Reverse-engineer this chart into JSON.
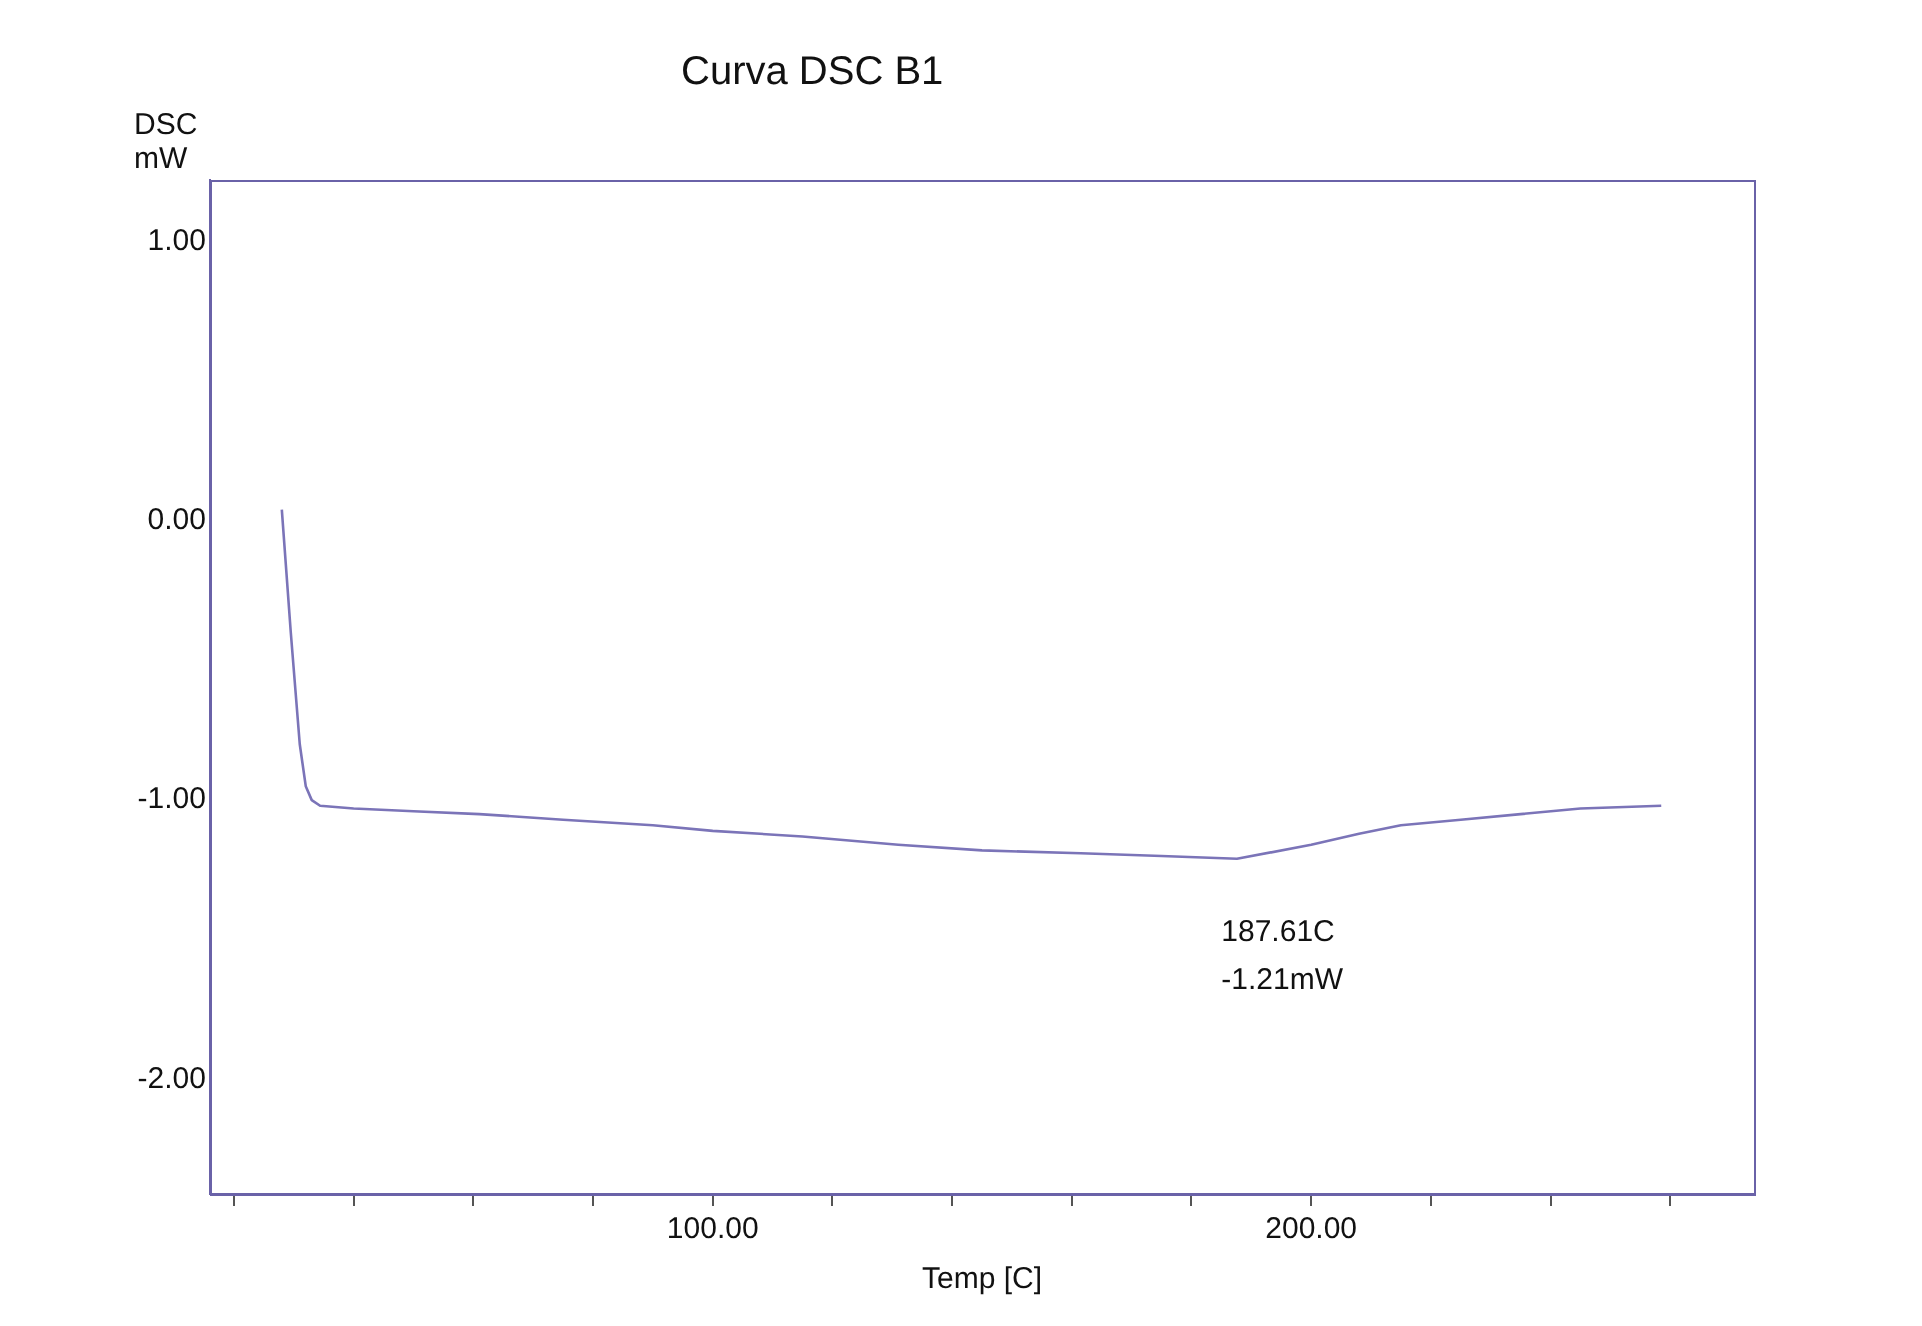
{
  "chart_data": {
    "type": "line",
    "title": "Curva DSC B1",
    "xlabel": "Temp [C]",
    "ylabel": "DSC\nmW",
    "x": [
      28,
      29.5,
      31,
      32,
      33,
      34.4,
      40,
      50,
      61,
      75,
      90,
      100,
      115,
      131,
      145,
      161.5,
      175,
      187.6,
      200,
      208,
      215,
      225,
      235,
      245,
      258.5
    ],
    "series": [
      {
        "color": "#7b74b8",
        "values": [
          0.04,
          -0.4,
          -0.8,
          -0.95,
          -1.0,
          -1.02,
          -1.03,
          -1.04,
          -1.05,
          -1.07,
          -1.09,
          -1.11,
          -1.13,
          -1.16,
          -1.18,
          -1.19,
          -1.2,
          -1.21,
          -1.16,
          -1.12,
          -1.09,
          -1.07,
          -1.05,
          -1.03,
          -1.02
        ]
      }
    ],
    "xlim": [
      16,
      274
    ],
    "ylim": [
      -2.41,
      1.22
    ],
    "xticks": [
      {
        "value": 20,
        "label": null
      },
      {
        "value": 40,
        "label": null
      },
      {
        "value": 60,
        "label": null
      },
      {
        "value": 80,
        "label": null
      },
      {
        "value": 100,
        "label": "100.00"
      },
      {
        "value": 120,
        "label": null
      },
      {
        "value": 140,
        "label": null
      },
      {
        "value": 160,
        "label": null
      },
      {
        "value": 180,
        "label": null
      },
      {
        "value": 200,
        "label": "200.00"
      },
      {
        "value": 220,
        "label": null
      },
      {
        "value": 240,
        "label": null
      },
      {
        "value": 260,
        "label": null
      }
    ],
    "yticks": [
      {
        "value": 1,
        "label": "1.00"
      },
      {
        "value": 0,
        "label": "0.00"
      },
      {
        "value": -1,
        "label": "-1.00"
      },
      {
        "value": -2,
        "label": "-2.00"
      }
    ],
    "annotations": [
      "187.61C\n-1.21mW"
    ],
    "grid": false,
    "legend": false,
    "marker": "none",
    "line_style": "solid"
  }
}
